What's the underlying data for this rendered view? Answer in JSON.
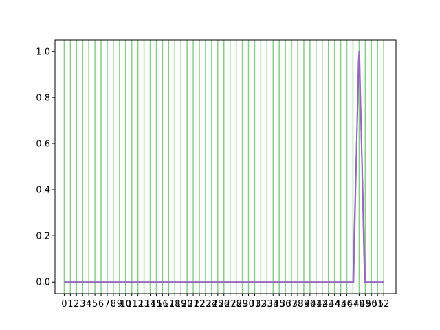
{
  "chart_data": {
    "type": "line",
    "x": [
      0,
      1,
      2,
      3,
      4,
      5,
      6,
      7,
      8,
      9,
      10,
      11,
      12,
      13,
      14,
      15,
      16,
      17,
      18,
      19,
      20,
      21,
      22,
      23,
      24,
      25,
      26,
      27,
      28,
      29,
      30,
      31,
      32,
      33,
      34,
      35,
      36,
      37,
      38,
      39,
      40,
      41,
      42,
      43,
      44,
      45,
      46,
      47,
      48,
      49,
      50,
      51,
      52
    ],
    "xticks": [
      "0",
      "1",
      "2",
      "3",
      "4",
      "5",
      "6",
      "7",
      "8",
      "9",
      "10",
      "11",
      "12",
      "13",
      "14",
      "15",
      "16",
      "17",
      "18",
      "19",
      "20",
      "21",
      "22",
      "23",
      "24",
      "25",
      "26",
      "27",
      "28",
      "29",
      "30",
      "31",
      "32",
      "33",
      "34",
      "35",
      "36",
      "37",
      "38",
      "39",
      "40",
      "41",
      "42",
      "43",
      "44",
      "45",
      "46",
      "47",
      "48",
      "49",
      "50",
      "51",
      "52"
    ],
    "xlim": [
      -1.5,
      54
    ],
    "ylim": [
      -0.05,
      1.05
    ],
    "yticks": [
      0.0,
      0.2,
      0.4,
      0.6,
      0.8,
      1.0
    ],
    "ytick_labels": [
      "0.0",
      "0.2",
      "0.4",
      "0.6",
      "0.8",
      "1.0"
    ],
    "vertical_lines": [
      0,
      1,
      2,
      3,
      4,
      5,
      6,
      7,
      8,
      9,
      10,
      11,
      12,
      13,
      14,
      15,
      16,
      17,
      18,
      19,
      20,
      21,
      22,
      23,
      24,
      25,
      26,
      27,
      28,
      29,
      30,
      31,
      32,
      33,
      34,
      35,
      36,
      37,
      38,
      39,
      40,
      41,
      42,
      43,
      44,
      45,
      46,
      47,
      48,
      49,
      50,
      51,
      52
    ],
    "series": [
      {
        "color": "#9467bd",
        "points": [
          [
            0,
            0
          ],
          [
            47,
            0
          ],
          [
            48,
            1
          ],
          [
            49,
            0
          ],
          [
            52,
            0
          ]
        ]
      },
      {
        "color": "#9467bd",
        "points": [
          [
            0,
            0
          ],
          [
            47.1,
            0
          ],
          [
            47.9,
            0.96
          ],
          [
            48.05,
            1
          ],
          [
            48.9,
            0
          ],
          [
            52,
            0
          ]
        ]
      }
    ],
    "title": "",
    "xlabel": "",
    "ylabel": "",
    "grid": false,
    "colors": {
      "vlines": "#2ca02c",
      "series": "#9467bd",
      "axes": "#000000"
    }
  }
}
